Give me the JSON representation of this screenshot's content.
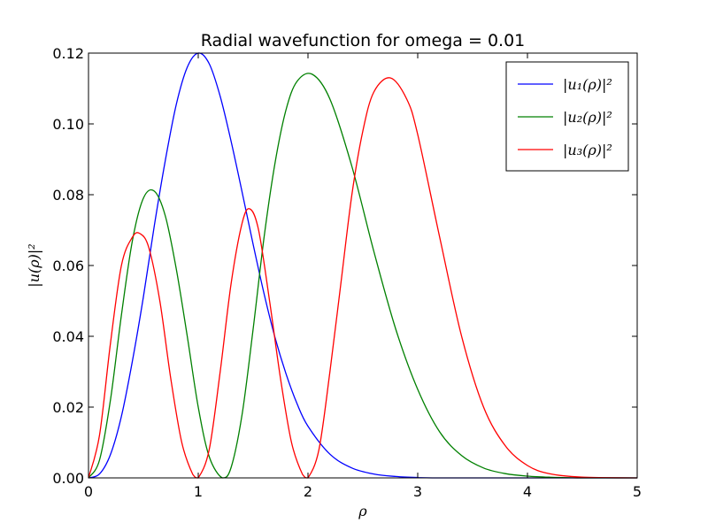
{
  "chart_data": {
    "type": "line",
    "title": "Radial wavefunction for omega = 0.01",
    "xlabel": "ρ",
    "ylabel": "|u(ρ)|²",
    "xlim": [
      0,
      5
    ],
    "ylim": [
      0,
      0.12
    ],
    "x_ticks": [
      "0",
      "1",
      "2",
      "3",
      "4",
      "5"
    ],
    "y_ticks": [
      "0.00",
      "0.02",
      "0.04",
      "0.06",
      "0.08",
      "0.10",
      "0.12"
    ],
    "grid": false,
    "legend_position": "top-right",
    "series": [
      {
        "name": "|u₁(ρ)|²",
        "color": "#0000ff",
        "x": [
          0,
          0.1,
          0.2,
          0.3,
          0.4,
          0.5,
          0.6,
          0.7,
          0.8,
          0.9,
          1.0,
          1.1,
          1.2,
          1.3,
          1.4,
          1.5,
          1.6,
          1.7,
          1.8,
          1.9,
          2.0,
          2.2,
          2.4,
          2.6,
          2.8,
          3.0,
          3.2,
          3.4,
          3.6,
          3.8,
          4.0,
          4.5,
          5.0
        ],
        "y": [
          0,
          0.0011,
          0.0066,
          0.0174,
          0.033,
          0.0511,
          0.0713,
          0.0897,
          0.1055,
          0.116,
          0.12,
          0.117,
          0.1078,
          0.095,
          0.0807,
          0.066,
          0.052,
          0.0396,
          0.0294,
          0.021,
          0.0146,
          0.0067,
          0.0028,
          0.0011,
          0.0004,
          0.0001,
          0,
          0,
          0,
          0,
          0,
          0,
          0
        ]
      },
      {
        "name": "|u₂(ρ)|²",
        "color": "#008000",
        "x": [
          0,
          0.1,
          0.2,
          0.3,
          0.4,
          0.5,
          0.6,
          0.7,
          0.8,
          0.9,
          1.0,
          1.1,
          1.22,
          1.3,
          1.4,
          1.5,
          1.6,
          1.7,
          1.8,
          1.9,
          2.04,
          2.2,
          2.4,
          2.6,
          2.8,
          3.0,
          3.2,
          3.4,
          3.6,
          3.8,
          4.0,
          4.2,
          4.5,
          5.0
        ],
        "y": [
          0,
          0.005,
          0.022,
          0.046,
          0.067,
          0.079,
          0.081,
          0.074,
          0.059,
          0.04,
          0.02,
          0.006,
          0,
          0.003,
          0.018,
          0.042,
          0.068,
          0.089,
          0.104,
          0.112,
          0.114,
          0.107,
          0.088,
          0.064,
          0.042,
          0.025,
          0.013,
          0.0063,
          0.0028,
          0.0012,
          0.0005,
          0.0002,
          0,
          0
        ]
      },
      {
        "name": "|u₃(ρ)|²",
        "color": "#ff0000",
        "x": [
          0,
          0.1,
          0.2,
          0.3,
          0.4,
          0.47,
          0.55,
          0.65,
          0.75,
          0.85,
          0.95,
          1.0,
          1.1,
          1.2,
          1.3,
          1.4,
          1.47,
          1.55,
          1.65,
          1.75,
          1.85,
          1.95,
          2.0,
          2.1,
          2.2,
          2.3,
          2.4,
          2.5,
          2.6,
          2.75,
          2.9,
          3.0,
          3.2,
          3.4,
          3.6,
          3.8,
          4.0,
          4.2,
          4.5,
          5.0
        ],
        "y": [
          0,
          0.012,
          0.038,
          0.06,
          0.068,
          0.069,
          0.065,
          0.05,
          0.028,
          0.01,
          0.001,
          0,
          0.008,
          0.03,
          0.055,
          0.072,
          0.076,
          0.07,
          0.05,
          0.028,
          0.01,
          0.001,
          0,
          0.008,
          0.03,
          0.055,
          0.08,
          0.098,
          0.109,
          0.113,
          0.107,
          0.097,
          0.068,
          0.04,
          0.02,
          0.009,
          0.0035,
          0.0012,
          0.0002,
          0
        ]
      }
    ]
  }
}
